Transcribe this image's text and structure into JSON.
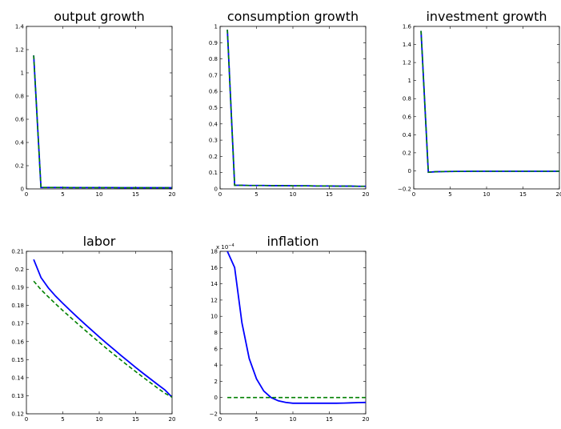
{
  "chart_data": [
    {
      "type": "line",
      "title": "output growth",
      "xlim": [
        0,
        20
      ],
      "ylim": [
        0,
        1.4
      ],
      "x_ticks": [
        "0",
        "5",
        "10",
        "15",
        "20"
      ],
      "y_ticks": [
        "0",
        "0.2",
        "0.4",
        "0.6",
        "0.8",
        "1",
        "1.2",
        "1.4"
      ],
      "y_tick_values": [
        0,
        0.2,
        0.4,
        0.6,
        0.8,
        1,
        1.2,
        1.4
      ],
      "exponent_label": "",
      "grid": false,
      "x": [
        1,
        2,
        3,
        4,
        5,
        6,
        7,
        8,
        9,
        10,
        11,
        12,
        13,
        14,
        15,
        16,
        17,
        18,
        19,
        20
      ],
      "series": [
        {
          "color": "#0000ff",
          "dashed": false,
          "values": [
            1.15,
            0.012,
            0.012,
            0.012,
            0.012,
            0.011,
            0.011,
            0.011,
            0.011,
            0.011,
            0.011,
            0.011,
            0.01,
            0.01,
            0.01,
            0.01,
            0.01,
            0.01,
            0.01,
            0.01
          ]
        },
        {
          "color": "#008000",
          "dashed": true,
          "values": [
            1.15,
            0.012,
            0.012,
            0.012,
            0.012,
            0.011,
            0.011,
            0.011,
            0.011,
            0.011,
            0.011,
            0.011,
            0.01,
            0.01,
            0.01,
            0.01,
            0.01,
            0.01,
            0.01,
            0.01
          ]
        }
      ]
    },
    {
      "type": "line",
      "title": "consumption growth",
      "xlim": [
        0,
        20
      ],
      "ylim": [
        0,
        1
      ],
      "x_ticks": [
        "0",
        "5",
        "10",
        "15",
        "20"
      ],
      "y_ticks": [
        "0",
        "0.1",
        "0.2",
        "0.3",
        "0.4",
        "0.5",
        "0.6",
        "0.7",
        "0.8",
        "0.9",
        "1"
      ],
      "y_tick_values": [
        0,
        0.1,
        0.2,
        0.3,
        0.4,
        0.5,
        0.6,
        0.7,
        0.8,
        0.9,
        1
      ],
      "exponent_label": "",
      "grid": false,
      "x": [
        1,
        2,
        3,
        4,
        5,
        6,
        7,
        8,
        9,
        10,
        11,
        12,
        13,
        14,
        15,
        16,
        17,
        18,
        19,
        20
      ],
      "series": [
        {
          "color": "#0000ff",
          "dashed": false,
          "values": [
            0.98,
            0.022,
            0.022,
            0.021,
            0.021,
            0.021,
            0.02,
            0.02,
            0.02,
            0.019,
            0.019,
            0.019,
            0.018,
            0.018,
            0.018,
            0.017,
            0.017,
            0.017,
            0.016,
            0.016
          ]
        },
        {
          "color": "#008000",
          "dashed": true,
          "values": [
            0.98,
            0.022,
            0.022,
            0.021,
            0.021,
            0.021,
            0.02,
            0.02,
            0.02,
            0.019,
            0.019,
            0.019,
            0.018,
            0.018,
            0.018,
            0.017,
            0.017,
            0.017,
            0.016,
            0.016
          ]
        }
      ]
    },
    {
      "type": "line",
      "title": "investment growth",
      "xlim": [
        0,
        20
      ],
      "ylim": [
        -0.2,
        1.6
      ],
      "x_ticks": [
        "0",
        "5",
        "10",
        "15",
        "20"
      ],
      "y_ticks": [
        "−0.2",
        "0",
        "0.2",
        "0.4",
        "0.6",
        "0.8",
        "1",
        "1.2",
        "1.4",
        "1.6"
      ],
      "y_tick_values": [
        -0.2,
        0,
        0.2,
        0.4,
        0.6,
        0.8,
        1,
        1.2,
        1.4,
        1.6
      ],
      "exponent_label": "",
      "grid": false,
      "x": [
        1,
        2,
        3,
        4,
        5,
        6,
        7,
        8,
        9,
        10,
        11,
        12,
        13,
        14,
        15,
        16,
        17,
        18,
        19,
        20
      ],
      "series": [
        {
          "color": "#0000ff",
          "dashed": false,
          "values": [
            1.55,
            -0.015,
            -0.01,
            -0.008,
            -0.007,
            -0.006,
            -0.006,
            -0.005,
            -0.005,
            -0.005,
            -0.005,
            -0.005,
            -0.005,
            -0.005,
            -0.005,
            -0.005,
            -0.005,
            -0.005,
            -0.005,
            -0.005
          ]
        },
        {
          "color": "#008000",
          "dashed": true,
          "values": [
            1.55,
            -0.015,
            -0.01,
            -0.008,
            -0.007,
            -0.006,
            -0.006,
            -0.005,
            -0.005,
            -0.005,
            -0.005,
            -0.005,
            -0.005,
            -0.005,
            -0.005,
            -0.005,
            -0.005,
            -0.005,
            -0.005,
            -0.005
          ]
        }
      ]
    },
    {
      "type": "line",
      "title": "labor",
      "xlim": [
        0,
        20
      ],
      "ylim": [
        0.12,
        0.21
      ],
      "x_ticks": [
        "0",
        "5",
        "10",
        "15",
        "20"
      ],
      "y_ticks": [
        "0.12",
        "0.13",
        "0.14",
        "0.15",
        "0.16",
        "0.17",
        "0.18",
        "0.19",
        "0.2",
        "0.21"
      ],
      "y_tick_values": [
        0.12,
        0.13,
        0.14,
        0.15,
        0.16,
        0.17,
        0.18,
        0.19,
        0.2,
        0.21
      ],
      "exponent_label": "",
      "grid": false,
      "x": [
        1,
        2,
        3,
        4,
        5,
        6,
        7,
        8,
        9,
        10,
        11,
        12,
        13,
        14,
        15,
        16,
        17,
        18,
        19,
        20
      ],
      "series": [
        {
          "color": "#0000ff",
          "dashed": false,
          "values": [
            0.2055,
            0.1955,
            0.1898,
            0.1852,
            0.1812,
            0.1773,
            0.1735,
            0.1698,
            0.1662,
            0.1626,
            0.1591,
            0.1557,
            0.1523,
            0.149,
            0.1457,
            0.1425,
            0.1394,
            0.1363,
            0.1333,
            0.1292
          ]
        },
        {
          "color": "#008000",
          "dashed": true,
          "values": [
            0.1935,
            0.1888,
            0.1848,
            0.1809,
            0.1772,
            0.1736,
            0.17,
            0.1665,
            0.163,
            0.1596,
            0.1562,
            0.1529,
            0.1497,
            0.1465,
            0.1434,
            0.1403,
            0.1373,
            0.1343,
            0.1314,
            0.1292
          ]
        }
      ]
    },
    {
      "type": "line",
      "title": "inflation",
      "xlim": [
        0,
        20
      ],
      "ylim": [
        -2,
        18
      ],
      "x_ticks": [
        "0",
        "5",
        "10",
        "15",
        "20"
      ],
      "y_ticks": [
        "−2",
        "0",
        "2",
        "4",
        "6",
        "8",
        "10",
        "12",
        "14",
        "16",
        "18"
      ],
      "y_tick_values": [
        -2,
        0,
        2,
        4,
        6,
        8,
        10,
        12,
        14,
        16,
        18
      ],
      "exponent_label": "x 10",
      "exponent_power": "−4",
      "grid": false,
      "x": [
        1,
        2,
        3,
        4,
        5,
        6,
        7,
        8,
        9,
        10,
        11,
        12,
        13,
        14,
        15,
        16,
        17,
        18,
        19,
        20
      ],
      "series": [
        {
          "color": "#0000ff",
          "dashed": false,
          "values": [
            18,
            16,
            9.2,
            4.8,
            2.3,
            0.8,
            0.0,
            -0.4,
            -0.6,
            -0.7,
            -0.7,
            -0.7,
            -0.7,
            -0.7,
            -0.7,
            -0.7,
            -0.68,
            -0.65,
            -0.62,
            -0.6
          ]
        },
        {
          "color": "#008000",
          "dashed": true,
          "values": [
            0,
            0,
            0,
            0,
            0,
            0,
            0,
            0,
            0,
            0,
            0,
            0,
            0,
            0,
            0,
            0,
            0,
            0,
            0,
            0
          ]
        }
      ]
    }
  ]
}
